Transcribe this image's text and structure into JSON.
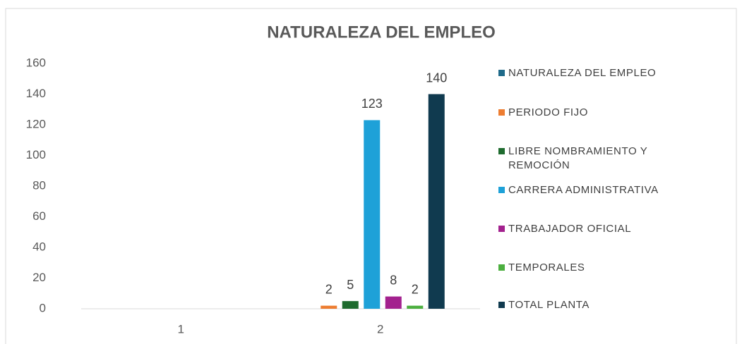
{
  "chart_data": {
    "type": "bar",
    "title": "NATURALEZA DEL EMPLEO",
    "categories": [
      "1",
      "2"
    ],
    "series": [
      {
        "name": "NATURALEZA DEL EMPLEO",
        "color": "#1f6a8a",
        "values": [
          null,
          null
        ]
      },
      {
        "name": "PERIODO FIJO",
        "color": "#ed7d31",
        "values": [
          null,
          2
        ]
      },
      {
        "name": "LIBRE NOMBRAMIENTO Y REMOCIÓN",
        "color": "#1e6b2e",
        "values": [
          null,
          5
        ]
      },
      {
        "name": "CARRERA ADMINISTRATIVA",
        "color": "#1ea1d8",
        "values": [
          null,
          123
        ]
      },
      {
        "name": "TRABAJADOR OFICIAL",
        "color": "#a3218e",
        "values": [
          null,
          8
        ]
      },
      {
        "name": "TEMPORALES",
        "color": "#4caf3f",
        "values": [
          null,
          2
        ]
      },
      {
        "name": "TOTAL PLANTA",
        "color": "#103a4f",
        "values": [
          null,
          140
        ]
      }
    ],
    "ylim": [
      0,
      160
    ],
    "yticks": [
      0,
      20,
      40,
      60,
      80,
      100,
      120,
      140,
      160
    ],
    "grid": false,
    "legend": "right"
  }
}
